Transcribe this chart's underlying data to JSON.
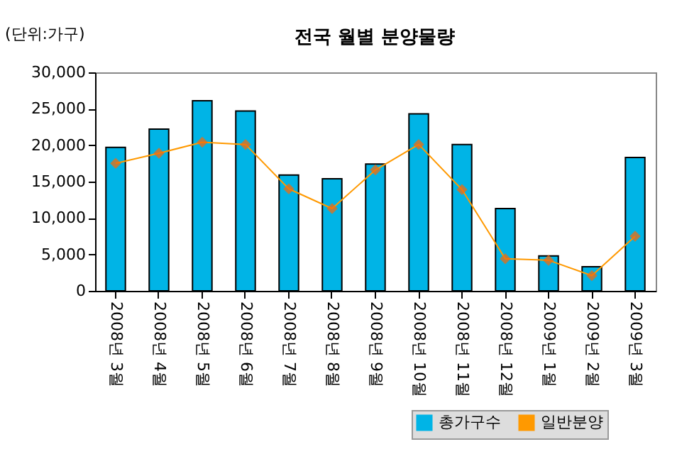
{
  "chart_data": {
    "type": "bar",
    "title": "전국 월별 분양물량",
    "ylabel": "(단위:가구)",
    "categories": [
      "2008년 3월",
      "2008년 4월",
      "2008년 5월",
      "2008년 6월",
      "2008년 7월",
      "2008년 8월",
      "2008년 9월",
      "2008년 10월",
      "2008년 11월",
      "2008년 12월",
      "2009년 1월",
      "2009년 2월",
      "2009년 3월"
    ],
    "series": [
      {
        "name": "총가구수",
        "color": "#00b4e6",
        "values": [
          19700,
          22200,
          26100,
          24700,
          15900,
          15400,
          17400,
          24300,
          20100,
          11300,
          4800,
          3300,
          18300
        ]
      },
      {
        "name": "일반분양",
        "type": "line",
        "color": "#ff9900",
        "values": [
          17500,
          18900,
          20400,
          20100,
          14000,
          11300,
          16600,
          20100,
          13900,
          4400,
          4200,
          2100,
          7500
        ]
      }
    ],
    "ylim": [
      0,
      30000
    ],
    "yticks": [
      0,
      {
        "value": 5000,
        "label": "5,000"
      },
      {
        "value": 10000,
        "label": "10,000"
      },
      {
        "value": 15000,
        "label": "15,000"
      },
      {
        "value": 20000,
        "label": "20,000"
      },
      {
        "value": 25000,
        "label": "25,000"
      },
      {
        "value": 30000,
        "label": "30,000"
      }
    ],
    "grid": false,
    "legend": "bottom right",
    "marker": "diamond",
    "line_style": "solid"
  }
}
